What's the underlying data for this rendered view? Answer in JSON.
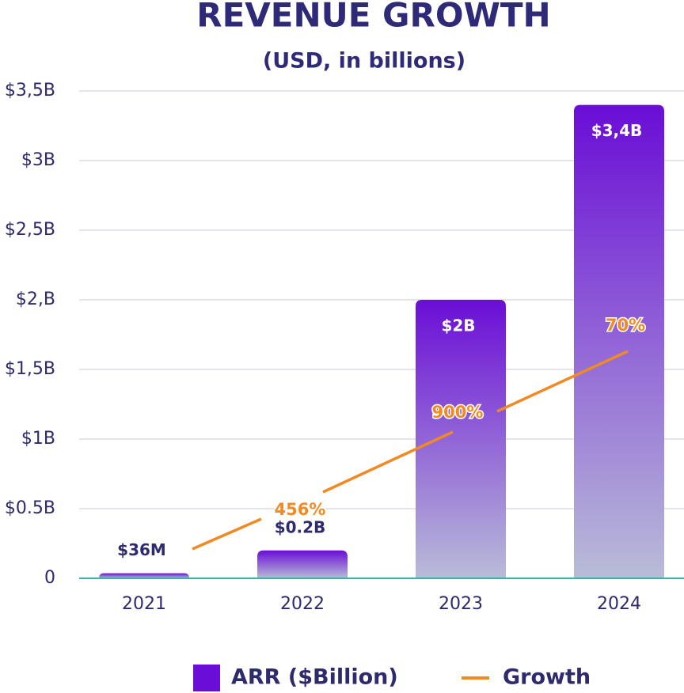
{
  "chart_data": {
    "type": "bar",
    "title": "REVENUE GROWTH",
    "subtitle": "(USD, in billions)",
    "categories": [
      "2021",
      "2022",
      "2023",
      "2024"
    ],
    "series": [
      {
        "name": "ARR ($Billion)",
        "color": "#6a0dd6",
        "values": [
          0.036,
          0.2,
          2,
          3.4
        ],
        "value_labels": [
          "$36M",
          "$0.2B",
          "$2B",
          "$3,4B"
        ]
      },
      {
        "name": "Growth",
        "color": "#f08a24",
        "values": [
          null,
          456,
          900,
          70
        ],
        "value_labels": [
          null,
          "456%",
          "900%",
          "70%"
        ]
      }
    ],
    "ylim": [
      0,
      3.5
    ],
    "yticks": [
      0,
      {
        "value": 0.5,
        "label": "$0.5B"
      },
      {
        "value": 1,
        "label": "$1B"
      },
      {
        "value": 1.5,
        "label": "$1,5B"
      },
      {
        "value": 2,
        "label": "$2,B"
      },
      {
        "value": 2.5,
        "label": "$2,5B"
      },
      {
        "value": 3,
        "label": "$3B"
      },
      {
        "value": 3.5,
        "label": "$3,5B"
      }
    ],
    "grid": true
  }
}
